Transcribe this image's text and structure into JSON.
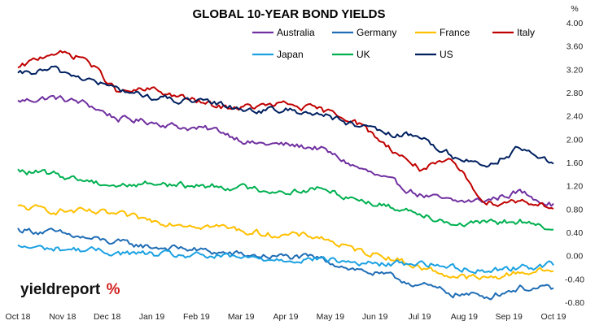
{
  "chart_data": {
    "type": "line",
    "title": "GLOBAL 10-YEAR BOND YIELDS",
    "unit": "%",
    "xlabel": "",
    "ylabel": "",
    "ylim": [
      -0.8,
      4.0
    ],
    "yticks": [
      "4.00",
      "3.60",
      "3.20",
      "2.80",
      "2.40",
      "2.00",
      "1.60",
      "1.20",
      "0.80",
      "0.40",
      "0.00",
      "-0.40",
      "-0.80"
    ],
    "x_tick_labels": [
      "Oct 18",
      "Nov 18",
      "Dec 18",
      "Jan 19",
      "Feb 19",
      "Mar 19",
      "Apr 19",
      "May 19",
      "Jun 19",
      "Jul 19",
      "Aug 19",
      "Sep 19",
      "Oct 19"
    ],
    "y_axis_position": "right",
    "grid": false,
    "legend_position": "top-right",
    "series": [
      {
        "name": "Australia",
        "color": "#7030a0",
        "values": [
          2.65,
          2.72,
          2.62,
          2.35,
          2.3,
          2.2,
          2.15,
          1.93,
          1.9,
          1.85,
          1.55,
          1.3,
          1.05,
          0.92,
          0.95,
          1.1,
          0.88
        ]
      },
      {
        "name": "Germany",
        "color": "#1f6db5",
        "values": [
          0.45,
          0.4,
          0.3,
          0.22,
          0.15,
          0.12,
          0.05,
          0.0,
          -0.02,
          -0.05,
          -0.22,
          -0.35,
          -0.5,
          -0.65,
          -0.7,
          -0.55,
          -0.58
        ]
      },
      {
        "name": "France",
        "color": "#ffc000",
        "values": [
          0.83,
          0.78,
          0.75,
          0.7,
          0.6,
          0.55,
          0.5,
          0.4,
          0.35,
          0.33,
          0.1,
          0.0,
          -0.2,
          -0.35,
          -0.4,
          -0.28,
          -0.25
        ]
      },
      {
        "name": "Italy",
        "color": "#c00000",
        "values": [
          3.2,
          3.5,
          3.4,
          2.8,
          2.85,
          2.7,
          2.55,
          2.55,
          2.6,
          2.5,
          2.35,
          1.9,
          1.5,
          1.6,
          0.9,
          0.95,
          0.85
        ]
      },
      {
        "name": "Japan",
        "color": "#1ba1e2",
        "values": [
          0.15,
          0.12,
          0.1,
          0.05,
          0.02,
          0.0,
          -0.02,
          -0.05,
          -0.06,
          -0.05,
          -0.12,
          -0.15,
          -0.12,
          -0.2,
          -0.25,
          -0.2,
          -0.15
        ]
      },
      {
        "name": "UK",
        "color": "#00b050",
        "values": [
          1.45,
          1.4,
          1.3,
          1.2,
          1.25,
          1.2,
          1.2,
          1.15,
          1.1,
          1.15,
          1.0,
          0.85,
          0.75,
          0.55,
          0.55,
          0.6,
          0.4
        ]
      },
      {
        "name": "US",
        "color": "#002060",
        "values": [
          3.1,
          3.2,
          3.05,
          2.85,
          2.72,
          2.65,
          2.6,
          2.5,
          2.5,
          2.45,
          2.25,
          2.08,
          2.05,
          1.7,
          1.55,
          1.85,
          1.55
        ]
      }
    ]
  },
  "legend_rows": [
    [
      "Australia",
      "Germany",
      "France",
      "Italy"
    ],
    [
      "Japan",
      "UK",
      "US"
    ]
  ],
  "logo": {
    "main": "yieldreport",
    "mark": "%"
  }
}
